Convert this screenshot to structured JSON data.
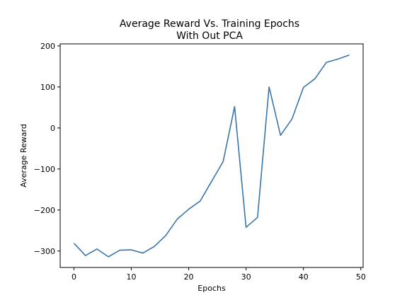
{
  "chart_data": {
    "type": "line",
    "title_lines": [
      "Average Reward Vs. Training Epochs",
      "With Out PCA"
    ],
    "xlabel": "Epochs",
    "ylabel": "Average Reward",
    "xlim": [
      -2.4,
      50.4
    ],
    "ylim": [
      -340,
      205
    ],
    "xticks": [
      0,
      10,
      20,
      30,
      40,
      50
    ],
    "yticks": [
      -300,
      -200,
      -100,
      0,
      100,
      200
    ],
    "grid": false,
    "line_color": "#3a75aa",
    "series": [
      {
        "x": [
          0,
          2,
          4,
          6,
          8,
          10,
          12,
          14,
          16,
          18,
          20,
          22,
          24,
          26,
          28,
          30,
          32,
          34,
          36,
          38,
          40,
          42,
          44,
          46,
          48
        ],
        "y": [
          -281,
          -311,
          -295,
          -314,
          -298,
          -297,
          -305,
          -289,
          -262,
          -222,
          -198,
          -178,
          -130,
          -82,
          52,
          -242,
          -218,
          100,
          -18,
          22,
          99,
          120,
          160,
          168,
          178
        ]
      }
    ]
  }
}
